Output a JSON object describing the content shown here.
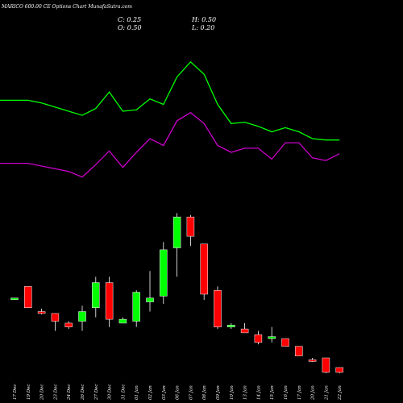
{
  "chart_data": {
    "type": "candlestick",
    "title": "MARICO 600.00 CE Options Chart MunafaSutra.com",
    "ohlc_readout": {
      "C": "C: 0.25",
      "H": "H: 0.50",
      "O": "O: 0.50",
      "L": "L: 0.20"
    },
    "colors": {
      "up": "#00ff00",
      "down": "#ff0000",
      "line_upper": "#00ff00",
      "line_lower": "#cc00cc",
      "background": "#000000",
      "doji": "#ffffff"
    },
    "categories": [
      "17 Dec",
      "19 Dec",
      "20 Dec",
      "23 Dec",
      "24 Dec",
      "26 Dec",
      "27 Dec",
      "30 Dec",
      "31 Dec",
      "01 Jan",
      "02 Jan",
      "03 Jan",
      "06 Jan",
      "07 Jan",
      "08 Jan",
      "09 Jan",
      "10 Jan",
      "13 Jan",
      "14 Jan",
      "15 Jan",
      "16 Jan",
      "17 Jan",
      "20 Jan",
      "21 Jan",
      "22 Jan"
    ],
    "candles": [
      {
        "o": 4.1,
        "h": 4.1,
        "l": 4.1,
        "c": 4.1
      },
      {
        "o": 4.7,
        "h": 4.7,
        "l": 3.6,
        "c": 3.6
      },
      {
        "o": 3.4,
        "h": 3.55,
        "l": 3.25,
        "c": 3.3
      },
      {
        "o": 3.3,
        "h": 3.3,
        "l": 2.4,
        "c": 2.9
      },
      {
        "o": 2.8,
        "h": 2.9,
        "l": 2.5,
        "c": 2.6
      },
      {
        "o": 2.9,
        "h": 3.7,
        "l": 2.4,
        "c": 3.4
      },
      {
        "o": 3.6,
        "h": 5.2,
        "l": 3.1,
        "c": 4.9
      },
      {
        "o": 4.9,
        "h": 5.2,
        "l": 2.6,
        "c": 3.0
      },
      {
        "o": 2.8,
        "h": 3.1,
        "l": 2.8,
        "c": 3.0
      },
      {
        "o": 2.9,
        "h": 4.5,
        "l": 2.6,
        "c": 4.4
      },
      {
        "o": 3.9,
        "h": 5.5,
        "l": 3.4,
        "c": 4.1
      },
      {
        "o": 4.2,
        "h": 7.0,
        "l": 3.8,
        "c": 6.6
      },
      {
        "o": 6.7,
        "h": 8.5,
        "l": 5.2,
        "c": 8.3
      },
      {
        "o": 8.3,
        "h": 8.4,
        "l": 6.8,
        "c": 7.3
      },
      {
        "o": 6.9,
        "h": 6.9,
        "l": 4.0,
        "c": 4.3
      },
      {
        "o": 4.5,
        "h": 4.7,
        "l": 2.5,
        "c": 2.6
      },
      {
        "o": 2.6,
        "h": 2.8,
        "l": 2.5,
        "c": 2.7
      },
      {
        "o": 2.5,
        "h": 2.8,
        "l": 2.3,
        "c": 2.3
      },
      {
        "o": 2.2,
        "h": 2.4,
        "l": 1.7,
        "c": 1.8
      },
      {
        "o": 2.0,
        "h": 2.6,
        "l": 1.8,
        "c": 2.1
      },
      {
        "o": 2.0,
        "h": 2.0,
        "l": 1.6,
        "c": 1.6
      },
      {
        "o": 1.6,
        "h": 1.6,
        "l": 1.1,
        "c": 1.1
      },
      {
        "o": 0.9,
        "h": 1.0,
        "l": 0.8,
        "c": 0.85
      },
      {
        "o": 1.0,
        "h": 1.0,
        "l": 0.2,
        "c": 0.25
      },
      {
        "o": 0.5,
        "h": 0.5,
        "l": 0.2,
        "c": 0.25
      }
    ],
    "price_range": [
      0.5,
      8.6
    ],
    "series": [
      {
        "color": "#00ff00",
        "values": [
          68,
          68,
          66,
          63,
          60,
          57,
          62,
          74,
          60,
          61,
          69,
          65,
          85,
          96,
          87,
          65,
          51,
          52,
          49,
          45,
          48,
          45,
          40,
          39,
          39
        ]
      },
      {
        "color": "#cc00cc",
        "values": [
          22,
          22,
          20,
          18,
          16,
          12,
          21,
          31,
          19,
          30,
          40,
          35,
          53,
          59,
          51,
          35,
          30,
          33,
          33,
          25,
          37,
          37,
          26,
          24,
          29
        ]
      }
    ],
    "line_range": [
      0,
      100
    ],
    "grid": false,
    "legend": "none"
  }
}
